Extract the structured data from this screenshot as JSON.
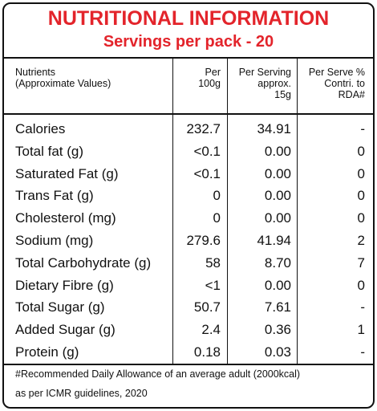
{
  "header": {
    "title": "NUTRITIONAL INFORMATION",
    "subtitle": "Servings per pack - 20"
  },
  "table": {
    "columns": [
      "Nutrients\n(Approximate Values)",
      "Per\n100g",
      "Per Serving\napprox.\n15g",
      "Per Serve %\nContri. to\nRDA#"
    ],
    "rows": [
      [
        "Calories",
        "232.7",
        "34.91",
        "-"
      ],
      [
        "Total fat (g)",
        "<0.1",
        "0.00",
        "0"
      ],
      [
        "Saturated Fat (g)",
        "<0.1",
        "0.00",
        "0"
      ],
      [
        "Trans Fat (g)",
        "0",
        "0.00",
        "0"
      ],
      [
        "Cholesterol (mg)",
        "0",
        "0.00",
        "0"
      ],
      [
        "Sodium (mg)",
        "279.6",
        "41.94",
        "2"
      ],
      [
        "Total Carbohydrate (g)",
        "58",
        "8.70",
        "7"
      ],
      [
        "Dietary Fibre (g)",
        "<1",
        "0.00",
        "0"
      ],
      [
        "Total Sugar (g)",
        "50.7",
        "7.61",
        "-"
      ],
      [
        "Added Sugar (g)",
        "2.4",
        "0.36",
        "1"
      ],
      [
        "Protein (g)",
        "0.18",
        "0.03",
        "-"
      ]
    ]
  },
  "footer": [
    "#Recommended Daily Allowance of an average adult (2000kcal)",
    "as per ICMR guidelines, 2020"
  ]
}
